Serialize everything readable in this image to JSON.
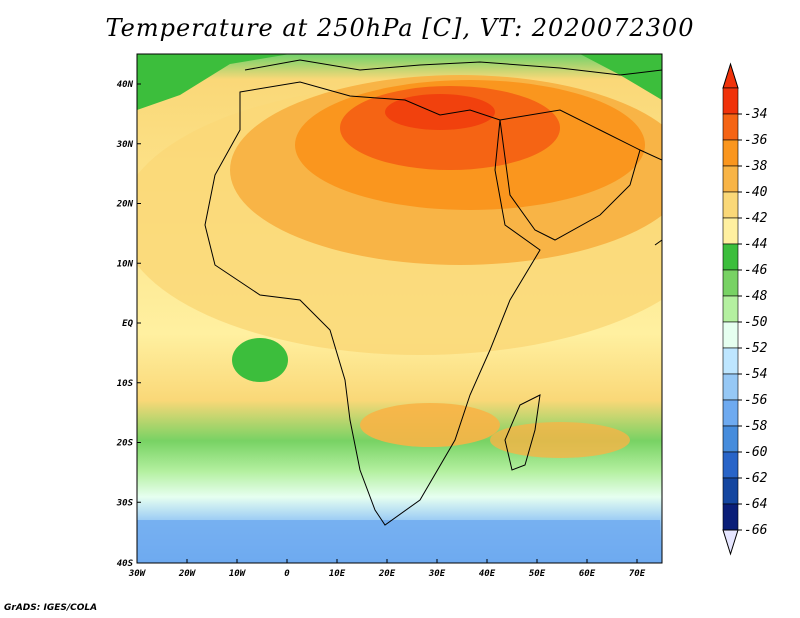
{
  "title": "Temperature at 250hPa [C], VT: 2020072300",
  "footer": "GrADS: IGES/COLA",
  "map": {
    "lat_labels": [
      "40N",
      "30N",
      "20N",
      "10N",
      "EQ",
      "10S",
      "20S",
      "30S",
      "40S"
    ],
    "lon_labels": [
      "30W",
      "20W",
      "10W",
      "0",
      "10E",
      "20E",
      "30E",
      "40E",
      "50E",
      "60E",
      "70E"
    ]
  },
  "colorbar": {
    "labels": [
      "-34",
      "-36",
      "-38",
      "-40",
      "-42",
      "-44",
      "-46",
      "-48",
      "-50",
      "-52",
      "-54",
      "-56",
      "-58",
      "-60",
      "-62",
      "-64",
      "-66"
    ],
    "colors": [
      "#f0320a",
      "#f56414",
      "#fa961e",
      "#f8b446",
      "#fad878",
      "#fff0a0",
      "#3cbe3c",
      "#78d264",
      "#b4f0a0",
      "#e6fff0",
      "#bee6ff",
      "#96c8f5",
      "#6eaaf0",
      "#468cdc",
      "#2864c8",
      "#1446a0",
      "#0a1e78"
    ]
  }
}
